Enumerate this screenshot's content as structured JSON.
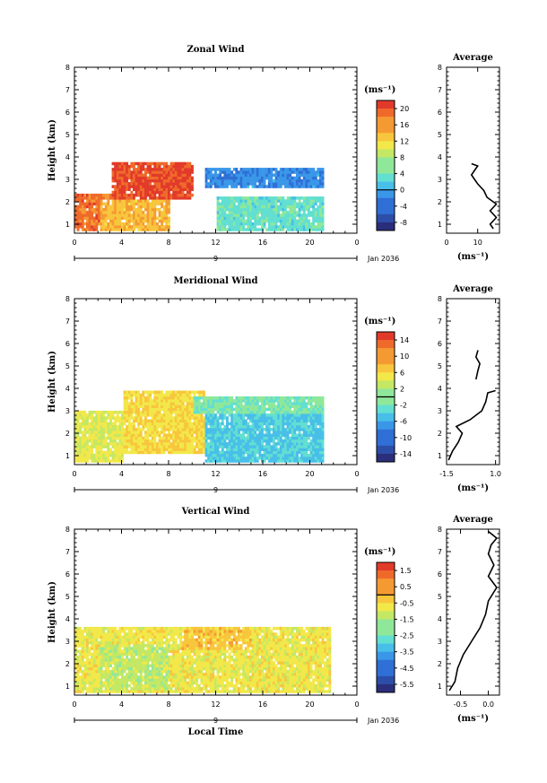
{
  "chart_data": [
    {
      "type": "heatmap",
      "title": "Zonal Wind",
      "ylabel": "Height (km)",
      "units": "(ms⁻¹)",
      "date_label": "Jan 2036",
      "day_label": "9",
      "x_ticks": [
        "0",
        "4",
        "8",
        "12",
        "16",
        "20",
        "0"
      ],
      "y_ticks": [
        "1",
        "2",
        "3",
        "4",
        "5",
        "6",
        "7",
        "8"
      ],
      "xlim": [
        0,
        24
      ],
      "ylim": [
        0.6,
        8
      ],
      "colorbar_ticks": [
        "20",
        "16",
        "12",
        "8",
        "4",
        "0",
        "-4",
        "-8"
      ],
      "colorbar_range": [
        -10,
        22
      ],
      "data_extent_hours": [
        0,
        21.7
      ],
      "data_top_km_by_hour": [
        [
          0,
          2.0
        ],
        [
          1,
          2.3
        ],
        [
          2,
          2.7
        ],
        [
          3,
          3.3
        ],
        [
          4,
          3.75
        ],
        [
          8,
          3.75
        ],
        [
          10,
          3.0
        ],
        [
          11,
          3.5
        ],
        [
          20,
          3.5
        ],
        [
          21,
          2.5
        ],
        [
          21.7,
          1.8
        ]
      ],
      "regions_approx": [
        {
          "hours": [
            0,
            3
          ],
          "heights_km": [
            0.7,
            2.3
          ],
          "value": 18
        },
        {
          "hours": [
            3,
            10
          ],
          "heights_km": [
            2.0,
            3.75
          ],
          "value": 20
        },
        {
          "hours": [
            2,
            8
          ],
          "heights_km": [
            0.7,
            2.0
          ],
          "value": 14
        },
        {
          "hours": [
            11,
            21
          ],
          "heights_km": [
            2.6,
            3.5
          ],
          "value": -2
        },
        {
          "hours": [
            12,
            21
          ],
          "heights_km": [
            0.7,
            2.2
          ],
          "value": 4
        }
      ],
      "average_panel": {
        "title": "Average",
        "xlabel": "(ms⁻¹)",
        "x_ticks": [
          "0",
          "10"
        ],
        "xlim": [
          0,
          17
        ],
        "profile": [
          [
            15,
            0.8
          ],
          [
            14,
            1.0
          ],
          [
            16,
            1.3
          ],
          [
            14,
            1.6
          ],
          [
            16,
            1.9
          ],
          [
            13,
            2.2
          ],
          [
            12,
            2.5
          ],
          [
            10,
            2.8
          ],
          [
            9,
            3.0
          ],
          [
            8,
            3.2
          ],
          [
            9,
            3.4
          ],
          [
            10,
            3.6
          ],
          [
            8,
            3.7
          ]
        ]
      }
    },
    {
      "type": "heatmap",
      "title": "Meridional Wind",
      "ylabel": "Height (km)",
      "units": "(ms⁻¹)",
      "date_label": "Jan 2036",
      "day_label": "9",
      "x_ticks": [
        "0",
        "4",
        "8",
        "12",
        "16",
        "20",
        "0"
      ],
      "y_ticks": [
        "1",
        "2",
        "3",
        "4",
        "5",
        "6",
        "7",
        "8"
      ],
      "xlim": [
        0,
        24
      ],
      "ylim": [
        0.6,
        8
      ],
      "colorbar_ticks": [
        "14",
        "10",
        "6",
        "2",
        "-2",
        "-6",
        "-10",
        "-14"
      ],
      "colorbar_range": [
        -16,
        16
      ],
      "regions_approx": [
        {
          "hours": [
            0,
            4
          ],
          "heights_km": [
            0.7,
            3.0
          ],
          "value": 4
        },
        {
          "hours": [
            4,
            11
          ],
          "heights_km": [
            1.0,
            3.9
          ],
          "value": 6
        },
        {
          "hours": [
            11,
            21
          ],
          "heights_km": [
            0.7,
            2.8
          ],
          "value": -4
        },
        {
          "hours": [
            10,
            21
          ],
          "heights_km": [
            2.8,
            3.6
          ],
          "value": -1
        }
      ],
      "average_panel": {
        "title": "Average",
        "xlabel": "(ms⁻¹)",
        "x_ticks": [
          "-1.5",
          "1.0"
        ],
        "xlim": [
          -1.5,
          1.2
        ],
        "profile": [
          [
            -1.4,
            0.8
          ],
          [
            -1.2,
            1.2
          ],
          [
            -0.9,
            1.6
          ],
          [
            -0.7,
            2.0
          ],
          [
            -1.0,
            2.3
          ],
          [
            -0.3,
            2.6
          ],
          [
            0.3,
            3.0
          ],
          [
            0.5,
            3.4
          ],
          [
            0.6,
            3.8
          ],
          [
            1.0,
            3.9
          ]
        ],
        "profile_upper": [
          [
            0.0,
            4.4
          ],
          [
            0.1,
            4.8
          ],
          [
            0.2,
            5.1
          ],
          [
            0.0,
            5.4
          ],
          [
            0.1,
            5.7
          ]
        ]
      }
    },
    {
      "type": "heatmap",
      "title": "Vertical Wind",
      "ylabel": "Height (km)",
      "xlabel": "Local Time",
      "units": "(ms⁻¹)",
      "date_label": "Jan 2036",
      "day_label": "9",
      "x_ticks": [
        "0",
        "4",
        "8",
        "12",
        "16",
        "20",
        "0"
      ],
      "y_ticks": [
        "1",
        "2",
        "3",
        "4",
        "5",
        "6",
        "7",
        "8"
      ],
      "xlim": [
        0,
        24
      ],
      "ylim": [
        0.6,
        8
      ],
      "colorbar_ticks": [
        "1.5",
        "0.5",
        "-0.5",
        "-1.5",
        "-2.5",
        "-3.5",
        "-4.5",
        "-5.5"
      ],
      "colorbar_range": [
        -6,
        2
      ],
      "regions_approx": [
        {
          "hours": [
            0,
            21.7
          ],
          "heights_km": [
            0.7,
            3.6
          ],
          "value": -0.8
        },
        {
          "hours": [
            9,
            15
          ],
          "heights_km": [
            2.6,
            3.6
          ],
          "value": -0.2
        },
        {
          "hours": [
            2,
            8
          ],
          "heights_km": [
            0.8,
            2.8
          ],
          "value": -1.4
        }
      ],
      "average_panel": {
        "title": "Average",
        "xlabel": "(ms⁻¹)",
        "x_ticks": [
          "-0.5",
          "0.0"
        ],
        "xlim": [
          -0.75,
          0.2
        ],
        "profile": [
          [
            -0.7,
            0.8
          ],
          [
            -0.6,
            1.2
          ],
          [
            -0.55,
            1.8
          ],
          [
            -0.45,
            2.4
          ],
          [
            -0.3,
            3.0
          ],
          [
            -0.15,
            3.6
          ],
          [
            -0.05,
            4.2
          ],
          [
            0.0,
            4.8
          ],
          [
            0.15,
            5.4
          ],
          [
            0.0,
            5.9
          ],
          [
            0.1,
            6.4
          ],
          [
            0.0,
            6.9
          ],
          [
            0.05,
            7.3
          ],
          [
            0.15,
            7.6
          ],
          [
            0.0,
            7.9
          ]
        ]
      }
    }
  ]
}
